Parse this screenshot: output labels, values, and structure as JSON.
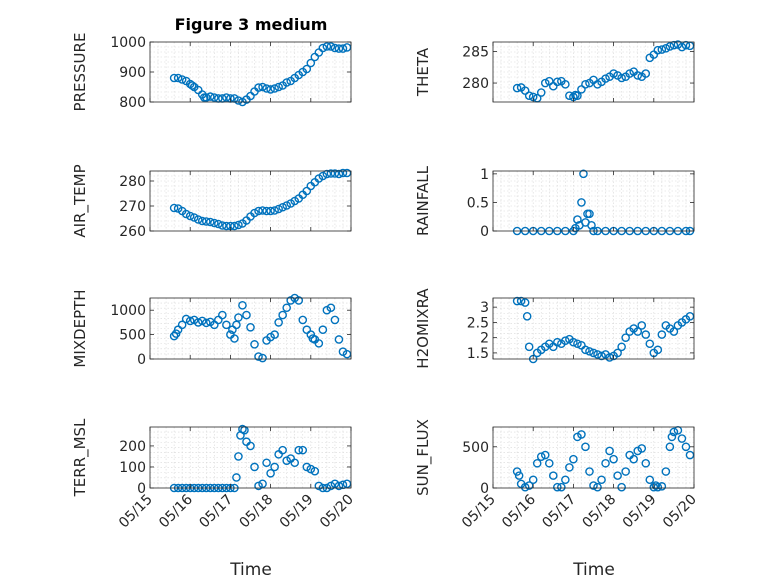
{
  "figure": {
    "title": "Figure 3 medium",
    "xlabel": "Time",
    "colors": {
      "marker": "#0072bd",
      "axis": "#262626",
      "grid": "#d8d8d8"
    }
  },
  "chart_data": [
    {
      "type": "scatter",
      "id": "pressure",
      "ylabel": "PRESSURE",
      "title": "Figure 3 medium",
      "xlim": [
        0,
        5
      ],
      "ylim": [
        800,
        1000
      ],
      "yticks": [
        800,
        900,
        1000
      ],
      "grid": true,
      "x": [
        0.6,
        0.7,
        0.8,
        0.9,
        1.0,
        1.05,
        1.1,
        1.2,
        1.3,
        1.35,
        1.4,
        1.5,
        1.6,
        1.7,
        1.8,
        1.9,
        2.0,
        2.1,
        2.2,
        2.3,
        2.4,
        2.5,
        2.6,
        2.7,
        2.8,
        2.9,
        3.0,
        3.1,
        3.2,
        3.3,
        3.4,
        3.5,
        3.6,
        3.7,
        3.8,
        3.9,
        4.0,
        4.1,
        4.2,
        4.3,
        4.4,
        4.5,
        4.6,
        4.7,
        4.8,
        4.9
      ],
      "y": [
        880,
        880,
        875,
        870,
        860,
        855,
        850,
        840,
        825,
        815,
        815,
        818,
        815,
        812,
        812,
        815,
        812,
        812,
        805,
        800,
        808,
        820,
        835,
        848,
        850,
        845,
        842,
        845,
        850,
        855,
        865,
        870,
        880,
        890,
        900,
        910,
        930,
        950,
        965,
        980,
        985,
        985,
        980,
        978,
        978,
        982
      ]
    },
    {
      "type": "scatter",
      "id": "theta",
      "ylabel": "THETA",
      "xlim": [
        0,
        5
      ],
      "ylim": [
        277,
        286.5
      ],
      "yticks": [
        280,
        285
      ],
      "grid": true,
      "x": [
        0.6,
        0.7,
        0.8,
        0.9,
        1.0,
        1.1,
        1.2,
        1.3,
        1.4,
        1.5,
        1.6,
        1.7,
        1.8,
        1.9,
        2.0,
        2.05,
        2.1,
        2.2,
        2.3,
        2.4,
        2.5,
        2.6,
        2.7,
        2.8,
        2.9,
        3.0,
        3.1,
        3.2,
        3.3,
        3.4,
        3.5,
        3.6,
        3.7,
        3.8,
        3.9,
        4.0,
        4.1,
        4.2,
        4.3,
        4.4,
        4.5,
        4.6,
        4.7,
        4.8,
        4.9
      ],
      "y": [
        279.2,
        279.3,
        278.8,
        278,
        277.8,
        277.6,
        278.5,
        280,
        280.3,
        279.5,
        280.2,
        280.3,
        279.8,
        278,
        277.8,
        278.1,
        278,
        279,
        279.8,
        280,
        280.5,
        279.8,
        280.2,
        280.7,
        281,
        281.5,
        281.2,
        280.8,
        281,
        281.5,
        281.8,
        281.2,
        281,
        281.5,
        284,
        284.5,
        285.2,
        285.3,
        285.5,
        285.8,
        286,
        286.1,
        285.7,
        286,
        285.9
      ]
    },
    {
      "type": "scatter",
      "id": "air_temp",
      "ylabel": "AIR_TEMP",
      "xlim": [
        0,
        5
      ],
      "ylim": [
        260,
        284
      ],
      "yticks": [
        260,
        270,
        280
      ],
      "grid": true,
      "x": [
        0.6,
        0.7,
        0.8,
        0.9,
        1.0,
        1.1,
        1.2,
        1.3,
        1.4,
        1.5,
        1.6,
        1.7,
        1.8,
        1.9,
        2.0,
        2.1,
        2.2,
        2.3,
        2.4,
        2.5,
        2.6,
        2.7,
        2.8,
        2.9,
        3.0,
        3.1,
        3.2,
        3.3,
        3.4,
        3.5,
        3.6,
        3.7,
        3.8,
        3.9,
        4.0,
        4.1,
        4.2,
        4.3,
        4.4,
        4.5,
        4.6,
        4.7,
        4.8,
        4.9
      ],
      "y": [
        269.2,
        269,
        268,
        266.8,
        266,
        265.4,
        264.6,
        264,
        263.8,
        263.6,
        263.2,
        262.8,
        262.2,
        262,
        262,
        262,
        262.4,
        263,
        264.2,
        265.8,
        267.2,
        268,
        268.2,
        268,
        268,
        268.2,
        268.8,
        269.5,
        270.2,
        271,
        272,
        273,
        274.5,
        276,
        278,
        279.5,
        281,
        282,
        282.8,
        283,
        283,
        282.8,
        283.2,
        283.2
      ]
    },
    {
      "type": "scatter",
      "id": "rainfall",
      "ylabel": "RAINFALL",
      "xlim": [
        0,
        5
      ],
      "ylim": [
        0,
        1.05
      ],
      "yticks": [
        0,
        0.5,
        1
      ],
      "grid": true,
      "x": [
        0.6,
        0.8,
        1.0,
        1.2,
        1.4,
        1.6,
        1.8,
        2.0,
        2.05,
        2.1,
        2.15,
        2.2,
        2.25,
        2.3,
        2.35,
        2.4,
        2.45,
        2.5,
        2.6,
        2.8,
        3.0,
        3.2,
        3.4,
        3.6,
        3.8,
        4.0,
        4.2,
        4.4,
        4.6,
        4.8,
        4.9
      ],
      "y": [
        0,
        0,
        0,
        0,
        0,
        0,
        0,
        0,
        0.05,
        0.2,
        0.1,
        0.5,
        1.0,
        0.15,
        0.3,
        0.3,
        0.1,
        0,
        0,
        0,
        0,
        0,
        0,
        0,
        0,
        0,
        0,
        0,
        0,
        0,
        0
      ]
    },
    {
      "type": "scatter",
      "id": "mixdepth",
      "ylabel": "MIXDEPTH",
      "xlim": [
        0,
        5
      ],
      "ylim": [
        0,
        1250
      ],
      "yticks": [
        0,
        500,
        1000
      ],
      "grid": true,
      "x": [
        0.6,
        0.65,
        0.7,
        0.8,
        0.9,
        1.0,
        1.1,
        1.2,
        1.3,
        1.4,
        1.5,
        1.6,
        1.7,
        1.8,
        1.9,
        2.0,
        2.05,
        2.1,
        2.15,
        2.2,
        2.3,
        2.4,
        2.5,
        2.6,
        2.7,
        2.8,
        2.9,
        3.0,
        3.1,
        3.2,
        3.3,
        3.4,
        3.5,
        3.6,
        3.7,
        3.8,
        3.9,
        4.0,
        4.05,
        4.1,
        4.2,
        4.3,
        4.4,
        4.5,
        4.6,
        4.7,
        4.8,
        4.9
      ],
      "y": [
        470,
        520,
        600,
        700,
        820,
        780,
        800,
        750,
        780,
        740,
        760,
        700,
        800,
        900,
        700,
        500,
        600,
        420,
        700,
        850,
        1100,
        900,
        650,
        300,
        50,
        20,
        380,
        450,
        500,
        750,
        900,
        1050,
        1200,
        1250,
        1200,
        800,
        600,
        500,
        420,
        400,
        320,
        600,
        1000,
        1050,
        800,
        400,
        150,
        100
      ]
    },
    {
      "type": "scatter",
      "id": "h2omixra",
      "ylabel": "H2OMIXRA",
      "xlim": [
        0,
        5
      ],
      "ylim": [
        1.3,
        3.3
      ],
      "yticks": [
        1.5,
        2,
        2.5,
        3
      ],
      "grid": true,
      "x": [
        0.6,
        0.7,
        0.8,
        0.85,
        0.9,
        1.0,
        1.1,
        1.2,
        1.3,
        1.4,
        1.5,
        1.6,
        1.7,
        1.8,
        1.9,
        2.0,
        2.1,
        2.2,
        2.3,
        2.4,
        2.5,
        2.6,
        2.7,
        2.8,
        2.9,
        3.0,
        3.1,
        3.2,
        3.3,
        3.4,
        3.5,
        3.6,
        3.7,
        3.8,
        3.9,
        4.0,
        4.1,
        4.2,
        4.3,
        4.4,
        4.5,
        4.6,
        4.7,
        4.8,
        4.9
      ],
      "y": [
        3.2,
        3.2,
        3.15,
        2.7,
        1.7,
        1.3,
        1.5,
        1.6,
        1.7,
        1.8,
        1.7,
        1.85,
        1.8,
        1.9,
        1.95,
        1.85,
        1.8,
        1.75,
        1.6,
        1.55,
        1.5,
        1.45,
        1.4,
        1.45,
        1.35,
        1.4,
        1.5,
        1.7,
        2.0,
        2.2,
        2.3,
        2.2,
        2.4,
        2.1,
        1.8,
        1.5,
        1.6,
        2.1,
        2.4,
        2.3,
        2.2,
        2.4,
        2.5,
        2.6,
        2.7
      ]
    },
    {
      "type": "scatter",
      "id": "terr_msl",
      "ylabel": "TERR_MSL",
      "xlim": [
        0,
        5
      ],
      "ylim": [
        0,
        290
      ],
      "yticks": [
        0,
        100,
        200
      ],
      "grid": true,
      "x": [
        0.6,
        0.7,
        0.8,
        0.9,
        1.0,
        1.1,
        1.2,
        1.3,
        1.4,
        1.5,
        1.6,
        1.7,
        1.8,
        1.9,
        2.0,
        2.1,
        2.15,
        2.2,
        2.25,
        2.3,
        2.35,
        2.4,
        2.5,
        2.6,
        2.7,
        2.8,
        2.9,
        3.0,
        3.1,
        3.2,
        3.3,
        3.4,
        3.5,
        3.6,
        3.7,
        3.8,
        3.9,
        4.0,
        4.1,
        4.2,
        4.3,
        4.4,
        4.5,
        4.6,
        4.7,
        4.8,
        4.9
      ],
      "y": [
        0,
        0,
        0,
        0,
        0,
        0,
        0,
        0,
        0,
        0,
        0,
        0,
        0,
        0,
        0,
        0,
        50,
        150,
        250,
        280,
        275,
        220,
        200,
        100,
        10,
        20,
        120,
        70,
        100,
        160,
        180,
        130,
        140,
        120,
        180,
        180,
        100,
        90,
        80,
        10,
        0,
        0,
        10,
        20,
        10,
        15,
        20
      ]
    },
    {
      "type": "scatter",
      "id": "sun_flux",
      "ylabel": "SUN_FLUX",
      "xlim": [
        0,
        5
      ],
      "ylim": [
        0,
        740
      ],
      "yticks": [
        0,
        500
      ],
      "grid": true,
      "x": [
        0.6,
        0.65,
        0.7,
        0.8,
        0.9,
        1.0,
        1.1,
        1.2,
        1.3,
        1.4,
        1.5,
        1.6,
        1.7,
        1.8,
        1.9,
        2.0,
        2.1,
        2.2,
        2.3,
        2.4,
        2.5,
        2.6,
        2.7,
        2.8,
        2.9,
        3.0,
        3.1,
        3.2,
        3.3,
        3.4,
        3.5,
        3.6,
        3.7,
        3.8,
        3.9,
        4.0,
        4.05,
        4.1,
        4.2,
        4.3,
        4.4,
        4.45,
        4.5,
        4.6,
        4.7,
        4.8,
        4.9
      ],
      "y": [
        200,
        150,
        50,
        10,
        30,
        100,
        300,
        380,
        400,
        300,
        150,
        10,
        10,
        100,
        250,
        350,
        620,
        650,
        500,
        200,
        30,
        10,
        100,
        300,
        450,
        350,
        150,
        10,
        200,
        400,
        350,
        450,
        480,
        300,
        100,
        10,
        30,
        10,
        20,
        200,
        500,
        620,
        680,
        700,
        600,
        500,
        400
      ]
    }
  ],
  "xaxis": {
    "ticks": [
      0,
      1,
      2,
      3,
      4,
      5
    ],
    "ticklabels": [
      "05/15",
      "05/16",
      "05/17",
      "05/18",
      "05/19",
      "05/20"
    ]
  }
}
